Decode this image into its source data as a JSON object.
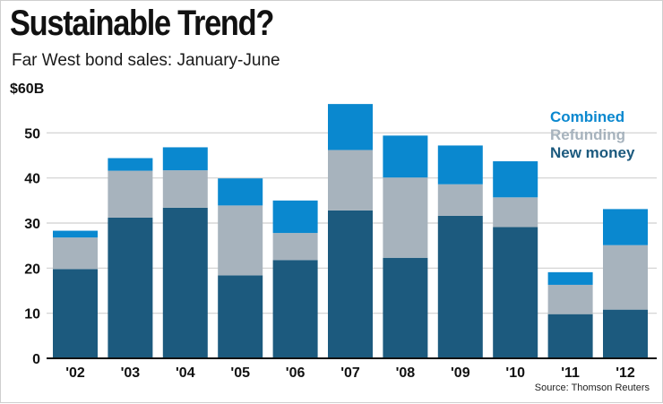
{
  "title": "Sustainable Trend?",
  "subtitle": "Far West bond sales: January-June",
  "source": "Source: Thomson Reuters",
  "y_unit_label": "$60B",
  "colors": {
    "new_money": "#1c5a7e",
    "refunding": "#a7b3bd",
    "combined": "#0a88cf",
    "grid": "#cfcfcf",
    "axis": "#111111"
  },
  "chart_data": {
    "type": "bar",
    "stacked": true,
    "title": "Sustainable Trend?",
    "subtitle": "Far West bond sales: January-June",
    "xlabel": "",
    "ylabel": "$B",
    "ylim": [
      0,
      60
    ],
    "yticks": [
      0,
      10,
      20,
      30,
      40,
      50
    ],
    "categories": [
      "'02",
      "'03",
      "'04",
      "'05",
      "'06",
      "'07",
      "'08",
      "'09",
      "'10",
      "'11",
      "'12"
    ],
    "series": [
      {
        "name": "New money",
        "key": "new_money",
        "values": [
          19.8,
          31.2,
          33.4,
          18.4,
          21.8,
          32.8,
          22.3,
          31.6,
          29.1,
          9.8,
          10.8
        ]
      },
      {
        "name": "Refunding",
        "key": "refunding",
        "values": [
          7.0,
          10.4,
          8.3,
          15.5,
          6.0,
          13.4,
          17.8,
          7.0,
          6.6,
          6.5,
          14.3
        ]
      },
      {
        "name": "Combined",
        "key": "combined",
        "values": [
          1.5,
          2.8,
          5.1,
          6.0,
          7.2,
          10.2,
          9.3,
          8.6,
          8.0,
          2.8,
          8.0
        ]
      }
    ],
    "legend": [
      "Combined",
      "Refunding",
      "New money"
    ],
    "legend_position": "top-right",
    "grid": true
  }
}
